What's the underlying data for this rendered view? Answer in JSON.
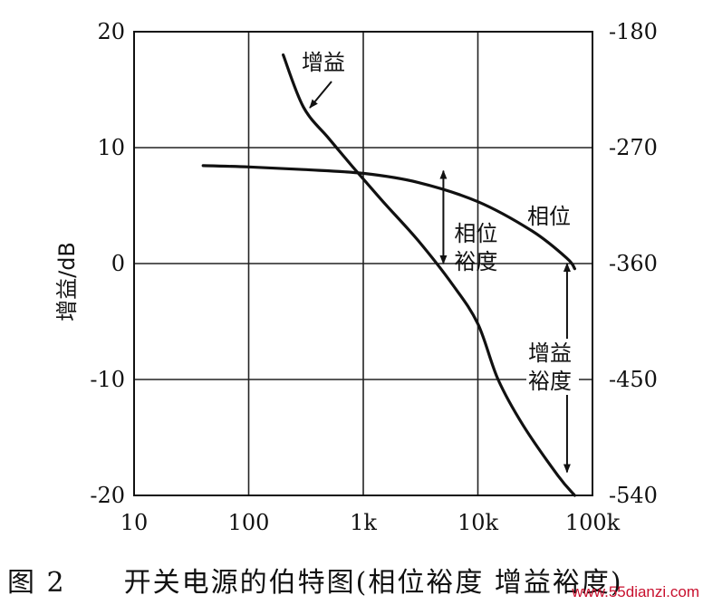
{
  "chart_data": {
    "type": "line",
    "xscale": "log",
    "xlim": [
      10,
      100000
    ],
    "ylim_left": [
      -20,
      20
    ],
    "ylim_right": [
      -540,
      -180
    ],
    "ylabel": "增益/dB",
    "xticks": [
      {
        "value": 10,
        "label": "10"
      },
      {
        "value": 100,
        "label": "100"
      },
      {
        "value": 1000,
        "label": "1k"
      },
      {
        "value": 10000,
        "label": "10k"
      },
      {
        "value": 100000,
        "label": "100k"
      }
    ],
    "yticks_left": [
      {
        "value": 20,
        "label": "20"
      },
      {
        "value": 10,
        "label": "10"
      },
      {
        "value": 0,
        "label": "0"
      },
      {
        "value": -10,
        "label": "-10"
      },
      {
        "value": -20,
        "label": "-20"
      }
    ],
    "yticks_right": [
      {
        "value": -180,
        "label": "-180"
      },
      {
        "value": -270,
        "label": "-270"
      },
      {
        "value": -360,
        "label": "-360"
      },
      {
        "value": -450,
        "label": "-450"
      },
      {
        "value": -540,
        "label": "-540"
      }
    ],
    "grid": true,
    "series": [
      {
        "name": "增益",
        "axis": "left",
        "x": [
          200,
          300,
          500,
          800,
          1500,
          3000,
          6000,
          10000,
          15000,
          25000,
          50000,
          70000
        ],
        "y": [
          18,
          13.5,
          10.8,
          8.4,
          5.3,
          2.0,
          -1.8,
          -5.2,
          -10.0,
          -14.0,
          -18.3,
          -20.0
        ]
      },
      {
        "name": "相位",
        "axis": "right",
        "x": [
          40,
          100,
          300,
          1000,
          3000,
          10000,
          30000,
          60000,
          70000
        ],
        "y": [
          -284,
          -285,
          -287,
          -290,
          -297,
          -312,
          -335,
          -356,
          -364
        ]
      }
    ],
    "annotations": [
      {
        "text": "增益",
        "kind": "series-label"
      },
      {
        "text": "相位",
        "kind": "series-label"
      },
      {
        "text": "相位",
        "text2": "裕度",
        "kind": "margin",
        "x": 5000,
        "from": 8.0,
        "to": 0
      },
      {
        "text": "增益",
        "text2": "裕度",
        "kind": "margin",
        "x": 60000,
        "from": 0,
        "to": -18
      }
    ]
  },
  "caption": "图 2　　开关电源的伯特图(相位裕度  增益裕度)",
  "watermark": "www.55dianzi.com"
}
